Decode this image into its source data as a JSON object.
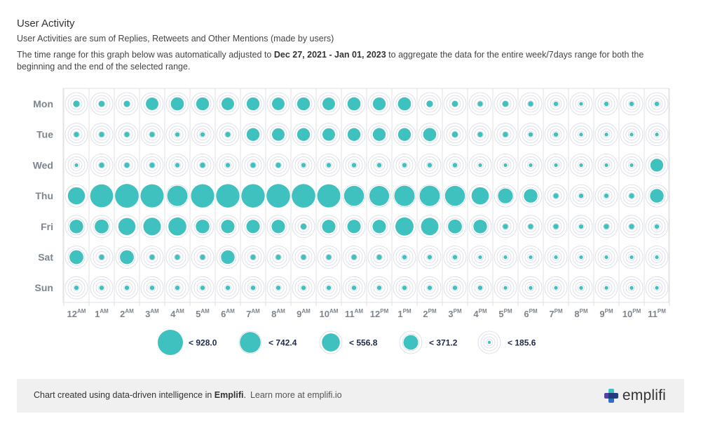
{
  "header": {
    "title": "User Activity",
    "subtitle": "User Activities are sum of Replies, Retweets and Other Mentions (made by users)",
    "note_prefix": "The time range for this graph below was automatically adjusted to ",
    "note_range": "Dec 27, 2021 - Jan 01, 2023",
    "note_suffix": " to aggregate the data for the entire week/7days range for both the beginning and the end of the selected range."
  },
  "colors": {
    "bubble": "#3fc1c0",
    "ring": "#d6dae5",
    "grid": "#e2e2e2",
    "label": "#7d8590",
    "legend_text": "#1e2a4a"
  },
  "chart_data": {
    "type": "bubble",
    "days": [
      "Mon",
      "Tue",
      "Wed",
      "Thu",
      "Fri",
      "Sat",
      "Sun"
    ],
    "hours": [
      {
        "h": "12",
        "p": "AM"
      },
      {
        "h": "1",
        "p": "AM"
      },
      {
        "h": "2",
        "p": "AM"
      },
      {
        "h": "3",
        "p": "AM"
      },
      {
        "h": "4",
        "p": "AM"
      },
      {
        "h": "5",
        "p": "AM"
      },
      {
        "h": "6",
        "p": "AM"
      },
      {
        "h": "7",
        "p": "AM"
      },
      {
        "h": "8",
        "p": "AM"
      },
      {
        "h": "9",
        "p": "AM"
      },
      {
        "h": "10",
        "p": "AM"
      },
      {
        "h": "11",
        "p": "AM"
      },
      {
        "h": "12",
        "p": "PM"
      },
      {
        "h": "1",
        "p": "PM"
      },
      {
        "h": "2",
        "p": "PM"
      },
      {
        "h": "3",
        "p": "PM"
      },
      {
        "h": "4",
        "p": "PM"
      },
      {
        "h": "5",
        "p": "PM"
      },
      {
        "h": "6",
        "p": "PM"
      },
      {
        "h": "7",
        "p": "PM"
      },
      {
        "h": "8",
        "p": "PM"
      },
      {
        "h": "9",
        "p": "PM"
      },
      {
        "h": "10",
        "p": "PM"
      },
      {
        "h": "11",
        "p": "PM"
      }
    ],
    "max_value": 928.0,
    "values": [
      [
        60,
        50,
        55,
        230,
        250,
        240,
        230,
        240,
        230,
        240,
        230,
        250,
        240,
        250,
        60,
        50,
        40,
        50,
        40,
        30,
        20,
        30,
        30,
        30
      ],
      [
        40,
        40,
        40,
        40,
        30,
        30,
        40,
        240,
        230,
        240,
        230,
        240,
        240,
        240,
        250,
        50,
        40,
        40,
        30,
        30,
        20,
        20,
        20,
        20
      ],
      [
        20,
        40,
        40,
        40,
        30,
        40,
        30,
        40,
        40,
        30,
        30,
        30,
        30,
        30,
        30,
        30,
        20,
        20,
        20,
        20,
        20,
        20,
        20,
        240
      ],
      [
        420,
        760,
        820,
        780,
        600,
        790,
        800,
        800,
        810,
        810,
        780,
        580,
        570,
        600,
        600,
        580,
        430,
        320,
        270,
        40,
        30,
        30,
        40,
        270
      ],
      [
        270,
        280,
        420,
        450,
        470,
        270,
        260,
        260,
        260,
        50,
        260,
        260,
        260,
        480,
        440,
        280,
        270,
        40,
        40,
        40,
        30,
        40,
        40,
        30
      ],
      [
        280,
        40,
        280,
        40,
        40,
        40,
        270,
        40,
        40,
        40,
        40,
        40,
        40,
        30,
        30,
        30,
        20,
        20,
        20,
        20,
        20,
        20,
        20,
        20
      ],
      [
        30,
        30,
        30,
        30,
        30,
        30,
        30,
        30,
        30,
        30,
        30,
        30,
        30,
        30,
        30,
        30,
        30,
        20,
        20,
        20,
        20,
        20,
        20,
        20
      ]
    ],
    "legend": [
      {
        "label": "< 928.0",
        "value": 928.0
      },
      {
        "label": "< 742.4",
        "value": 742.4
      },
      {
        "label": "< 556.8",
        "value": 556.8
      },
      {
        "label": "< 371.2",
        "value": 371.2
      },
      {
        "label": "< 185.6",
        "value": 185.6
      }
    ]
  },
  "footer": {
    "text_prefix": "Chart created using data-driven intelligence in ",
    "brand_bold": "Emplifi",
    "text_suffix": ".",
    "link": "Learn more at emplifi.io",
    "brand_name": "emplifi"
  }
}
